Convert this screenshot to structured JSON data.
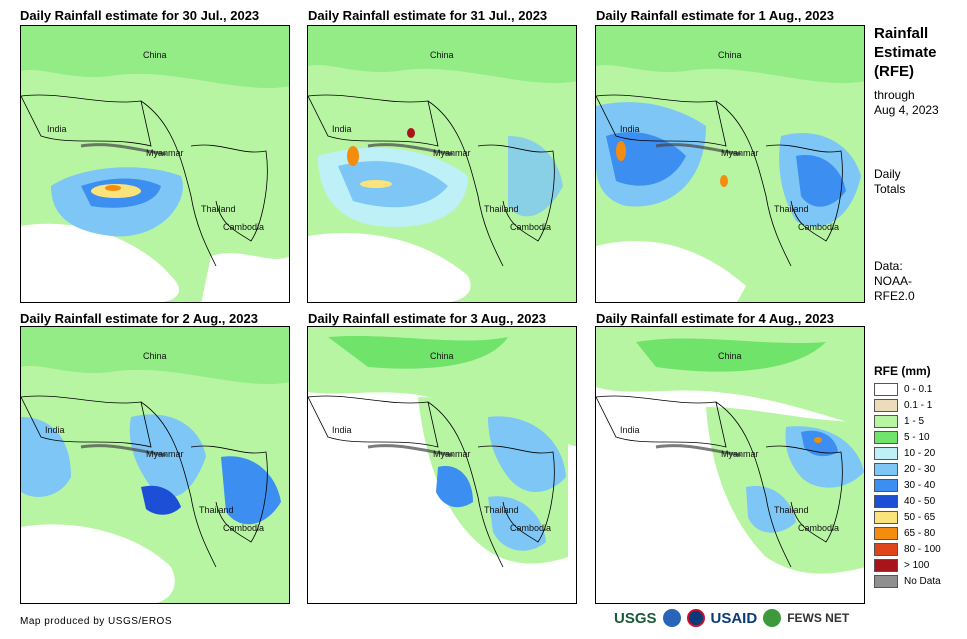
{
  "panels": [
    {
      "title": "Daily Rainfall estimate for 30 Jul., 2023",
      "labels": {
        "china": "China",
        "india": "India",
        "myanmar": "Myanmar",
        "thailand": "Thailand",
        "cambodia": "Cambodia"
      }
    },
    {
      "title": "Daily Rainfall estimate for 31 Jul., 2023",
      "labels": {
        "china": "China",
        "india": "India",
        "myanmar": "Myanmar",
        "thailand": "Thailand",
        "cambodia": "Cambodia"
      }
    },
    {
      "title": "Daily Rainfall estimate for 1 Aug., 2023",
      "labels": {
        "china": "China",
        "india": "India",
        "myanmar": "Myanmar",
        "thailand": "Thailand",
        "cambodia": "Cambodia"
      }
    },
    {
      "title": "Daily Rainfall estimate for 2 Aug., 2023",
      "labels": {
        "china": "China",
        "india": "India",
        "myanmar": "Myanmar",
        "thailand": "Thailand",
        "cambodia": "Cambodia"
      }
    },
    {
      "title": "Daily Rainfall estimate for 3 Aug., 2023",
      "labels": {
        "china": "China",
        "india": "India",
        "myanmar": "Myanmar",
        "thailand": "Thailand",
        "cambodia": "Cambodia"
      }
    },
    {
      "title": "Daily Rainfall estimate for 4 Aug., 2023",
      "labels": {
        "china": "China",
        "india": "India",
        "myanmar": "Myanmar",
        "thailand": "Thailand",
        "cambodia": "Cambodia"
      }
    }
  ],
  "sidebar": {
    "title_line1": "Rainfall",
    "title_line2": "Estimate",
    "title_line3": "(RFE)",
    "through": "through",
    "date": "Aug 4, 2023",
    "daily": "Daily",
    "totals": "Totals",
    "data_label": "Data:",
    "data_source_1": "NOAA-",
    "data_source_2": "RFE2.0"
  },
  "legend": {
    "title": "RFE (mm)",
    "items": [
      {
        "label": "0 - 0.1",
        "color": "#ffffff"
      },
      {
        "label": "0.1 - 1",
        "color": "#eddcb9"
      },
      {
        "label": "1 - 5",
        "color": "#b8f5a3"
      },
      {
        "label": "5 - 10",
        "color": "#6fe36a"
      },
      {
        "label": "10 - 20",
        "color": "#bdf0f7"
      },
      {
        "label": "20 - 30",
        "color": "#7dc6f5"
      },
      {
        "label": "30 - 40",
        "color": "#3c8ef0"
      },
      {
        "label": "40 - 50",
        "color": "#1c4fd6"
      },
      {
        "label": "50 - 65",
        "color": "#fbe37b"
      },
      {
        "label": "65 - 80",
        "color": "#f48c0e"
      },
      {
        "label": "80 - 100",
        "color": "#e0441a"
      },
      {
        "label": "> 100",
        "color": "#a8141a"
      },
      {
        "label": "No Data",
        "color": "#8f8f8f"
      }
    ]
  },
  "footer": {
    "credit": "Map produced by USGS/EROS",
    "logo_usgs": "USGS",
    "logo_usaid": "USAID",
    "logo_fews": "FEWS NET"
  }
}
